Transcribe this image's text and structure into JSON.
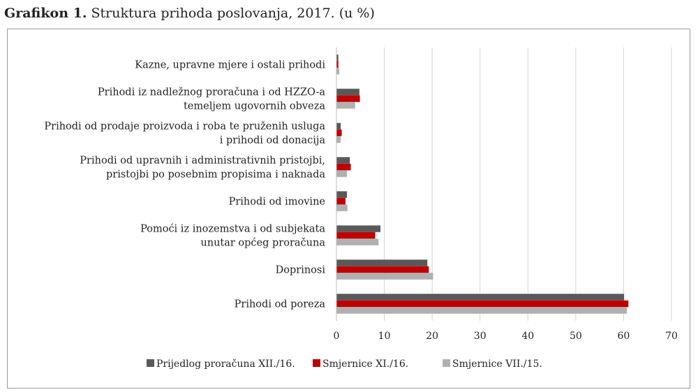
{
  "header": {
    "title_bold": "Grafikon 1.",
    "title_rest": " Struktura prihoda poslovanja, 2017. (u %)"
  },
  "chart_data": {
    "type": "bar",
    "orientation": "horizontal",
    "categories": [
      [
        "Kazne, upravne mjere i ostali prihodi"
      ],
      [
        "Prihodi iz nadležnog proračuna i od HZZO-a",
        "temeljem ugovornih obveza"
      ],
      [
        "Prihodi od prodaje proizvoda i roba te pruženih usluga",
        "i prihodi od donacija"
      ],
      [
        "Prihodi od upravnih i administrativnih pristojbi,",
        "pristojbi po posebnim propisima i naknada"
      ],
      [
        "Prihodi od imovine"
      ],
      [
        "Pomoći iz inozemstva i od subjekata",
        "unutar općeg proračuna"
      ],
      [
        "Doprinosi"
      ],
      [
        "Prihodi od poreza"
      ]
    ],
    "series": [
      {
        "name": "Prijedlog proračuna XII./16.",
        "color": "#595959",
        "values": [
          0.4,
          4.8,
          0.9,
          2.8,
          2.2,
          9.2,
          19.0,
          60.1
        ]
      },
      {
        "name": "Smjernice XI./16.",
        "color": "#c00000",
        "values": [
          0.4,
          4.9,
          1.1,
          3.0,
          1.9,
          8.1,
          19.3,
          61.0
        ]
      },
      {
        "name": "Smjernice VII./15.",
        "color": "#b0b0b0",
        "values": [
          0.6,
          3.9,
          0.9,
          2.2,
          2.3,
          8.8,
          20.2,
          60.7
        ]
      }
    ],
    "xlim": [
      0,
      70
    ],
    "xticks": [
      0,
      10,
      20,
      30,
      40,
      50,
      60,
      70
    ],
    "xtick_labels": [
      "0",
      "10",
      "20",
      "30",
      "40",
      "50",
      "60",
      "70"
    ],
    "grid": "vertical",
    "legend": "bottom"
  }
}
